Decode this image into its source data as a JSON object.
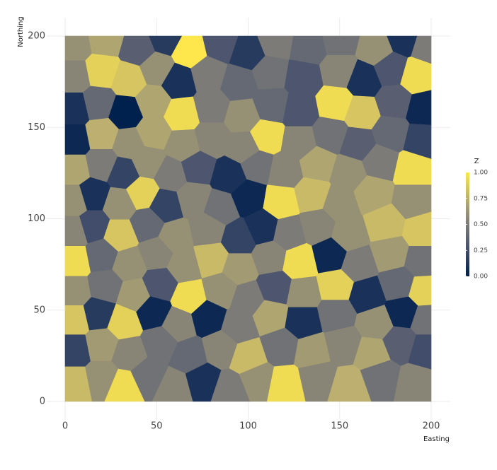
{
  "chart_data": {
    "type": "voronoi",
    "xlabel": "Easting",
    "ylabel": "Northing",
    "xlim": [
      0,
      200
    ],
    "ylim": [
      0,
      200
    ],
    "xticks": [
      0,
      50,
      100,
      150,
      200
    ],
    "yticks": [
      0,
      50,
      100,
      150,
      200
    ],
    "grid": true,
    "colorbar_title": "Z",
    "colorscale": [
      [
        0,
        "#00204d"
      ],
      [
        0.25,
        "#414d6b"
      ],
      [
        0.5,
        "#7c7b78"
      ],
      [
        0.75,
        "#bcaf6f"
      ],
      [
        1,
        "#fde74c"
      ]
    ],
    "colorbar_lim": [
      0,
      1
    ],
    "colorbar_ticks": [
      {
        "value": 0,
        "label": "0.00"
      },
      {
        "value": 0.25,
        "label": "0.25"
      },
      {
        "value": 0.5,
        "label": "0.50"
      },
      {
        "value": 0.75,
        "label": "0.75"
      },
      {
        "value": 1,
        "label": "1.00"
      }
    ],
    "x": [
      5,
      22,
      40,
      55,
      68,
      85,
      100,
      115,
      133,
      150,
      170,
      185,
      198,
      5,
      20,
      35,
      50,
      62,
      78,
      95,
      112,
      130,
      150,
      163,
      178,
      192,
      5,
      18,
      33,
      48,
      64,
      80,
      97,
      113,
      128,
      148,
      162,
      180,
      196,
      5,
      20,
      35,
      48,
      65,
      80,
      98,
      110,
      128,
      145,
      160,
      178,
      195,
      5,
      20,
      32,
      45,
      58,
      72,
      90,
      105,
      120,
      138,
      155,
      172,
      190,
      5,
      15,
      30,
      42,
      55,
      70,
      85,
      100,
      118,
      135,
      150,
      168,
      190,
      5,
      15,
      30,
      45,
      60,
      78,
      95,
      108,
      122,
      138,
      155,
      175,
      195,
      5,
      20,
      35,
      50,
      65,
      80,
      95,
      112,
      128,
      145,
      160,
      178,
      195,
      5,
      22,
      38,
      52,
      68,
      85,
      100,
      115,
      130,
      148,
      165,
      182,
      196,
      5,
      18,
      32,
      48,
      62,
      78,
      95,
      112,
      130,
      148,
      170,
      185,
      197,
      5,
      20,
      35,
      52,
      68,
      85,
      100,
      118,
      135,
      152,
      168,
      183,
      197,
      5,
      20,
      32,
      45,
      60,
      75,
      90,
      105,
      120,
      138,
      155,
      172,
      192
    ],
    "y": [
      195,
      198,
      193,
      199,
      192,
      196,
      191,
      197,
      194,
      198,
      193,
      199,
      195,
      178,
      181,
      176,
      182,
      175,
      179,
      174,
      180,
      177,
      181,
      176,
      182,
      178,
      160,
      163,
      158,
      164,
      157,
      161,
      156,
      162,
      159,
      163,
      158,
      164,
      160,
      143,
      146,
      141,
      147,
      140,
      144,
      139,
      145,
      142,
      146,
      141,
      147,
      143,
      127,
      130,
      125,
      131,
      124,
      128,
      123,
      129,
      126,
      130,
      125,
      131,
      127,
      110,
      113,
      108,
      114,
      107,
      111,
      106,
      112,
      109,
      113,
      108,
      114,
      110,
      93,
      96,
      91,
      97,
      90,
      94,
      89,
      95,
      92,
      96,
      91,
      97,
      93,
      77,
      80,
      75,
      81,
      74,
      78,
      73,
      79,
      76,
      80,
      75,
      81,
      77,
      60,
      63,
      58,
      64,
      57,
      61,
      56,
      62,
      59,
      63,
      58,
      64,
      60,
      45,
      48,
      43,
      49,
      42,
      46,
      41,
      47,
      44,
      48,
      43,
      49,
      45,
      28,
      31,
      26,
      32,
      25,
      29,
      24,
      30,
      27,
      31,
      26,
      32,
      28,
      10,
      13,
      8,
      14,
      7,
      11,
      6,
      12,
      9,
      13,
      8,
      14,
      10
    ],
    "values": [
      0.6,
      0.7,
      0.35,
      0.15,
      1,
      0.3,
      0.15,
      0.5,
      0.4,
      0.45,
      0.6,
      0.1,
      0.5,
      0.55,
      0.9,
      0.85,
      0.6,
      0.1,
      0.5,
      0.4,
      0.45,
      0.3,
      0.55,
      0.1,
      0.3,
      0.95,
      0.1,
      0.4,
      0,
      0.7,
      0.95,
      0.5,
      0.6,
      0.4,
      0.3,
      0.95,
      0.85,
      0.35,
      0.05,
      0.05,
      0.75,
      0.6,
      0.7,
      0.6,
      0.55,
      0.55,
      0.95,
      0.55,
      0.45,
      0.35,
      0.4,
      0.2,
      0.7,
      0.5,
      0.2,
      0.6,
      0.5,
      0.3,
      0.1,
      0.45,
      0.55,
      0.7,
      0.6,
      0.5,
      0.95,
      0.6,
      0.1,
      0.6,
      0.9,
      0.2,
      0.55,
      0.45,
      0.05,
      0.95,
      0.8,
      0.6,
      0.7,
      0.6,
      0.55,
      0.25,
      0.85,
      0.4,
      0.6,
      0.55,
      0.2,
      0.1,
      0.5,
      0.55,
      0.6,
      0.8,
      0.85,
      0.95,
      0.4,
      0.6,
      0.55,
      0.6,
      0.8,
      0.65,
      0.55,
      0.95,
      0.05,
      0.5,
      0.65,
      0.45,
      0.6,
      0.45,
      0.65,
      0.3,
      0.95,
      0.6,
      0.5,
      0.3,
      0.6,
      0.9,
      0.1,
      0.4,
      0.9,
      0.85,
      0.15,
      0.9,
      0.05,
      0.55,
      0.05,
      0.5,
      0.7,
      0.1,
      0.45,
      0.6,
      0.05,
      0.45,
      0.2,
      0.65,
      0.55,
      0.45,
      0.4,
      0.55,
      0.8,
      0.45,
      0.65,
      0.55,
      0.7,
      0.35,
      0.25,
      0.8,
      0.6,
      0.95,
      0.45,
      0.55,
      0.1,
      0.5,
      0.6,
      0.95,
      0.55,
      0.75,
      0.45,
      0.55
    ]
  }
}
